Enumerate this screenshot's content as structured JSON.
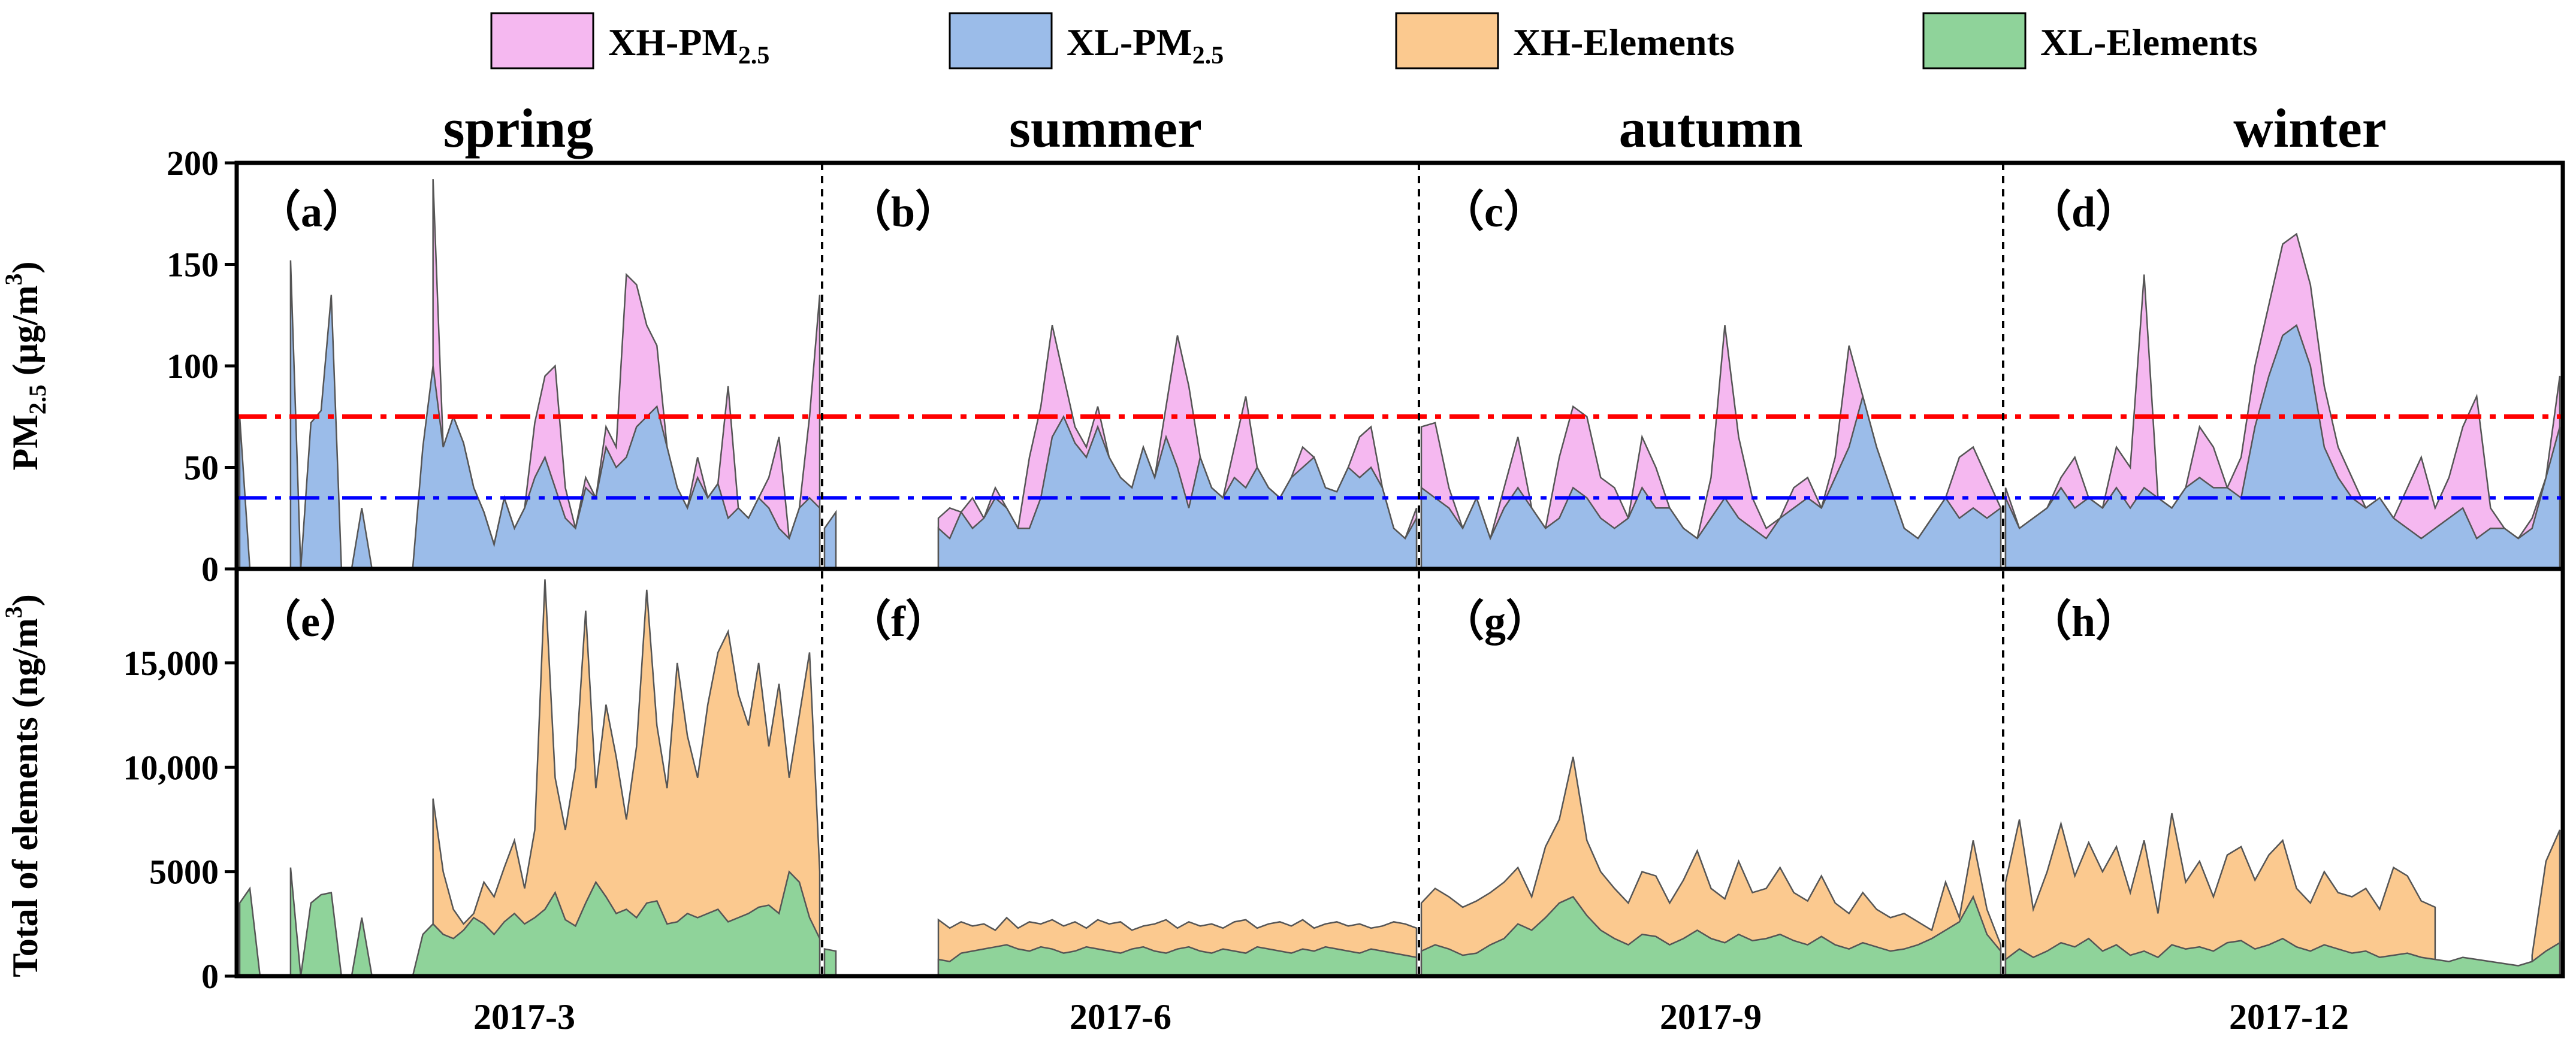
{
  "legend": {
    "items": [
      {
        "label": "XH-PM",
        "sub": "2.5",
        "color": "#f5b8f0"
      },
      {
        "label": "XL-PM",
        "sub": "2.5",
        "color": "#9bbce9"
      },
      {
        "label": "XH-Elements",
        "sub": "",
        "color": "#fbc98f"
      },
      {
        "label": "XL-Elements",
        "sub": "",
        "color": "#8fd39a"
      }
    ]
  },
  "seasons": [
    "spring",
    "summer",
    "autumn",
    "winter"
  ],
  "x_tick_labels": [
    "2017-3",
    "2017-6",
    "2017-9",
    "2017-12"
  ],
  "colors": {
    "xh_pm": "#f5b8f0",
    "xl_pm": "#9bbce9",
    "xh_el": "#fbc98f",
    "xl_el": "#8fd39a",
    "ref_high": "#ff0000",
    "ref_low": "#0000ff"
  },
  "chart_data": [
    {
      "type": "area",
      "panel": "top",
      "ylabel_main": "PM",
      "ylabel_sub": "2.5",
      "ylabel_unit": " (μg/m",
      "ylabel_sup": "3",
      "ylabel_close": ")",
      "ylim": [
        0,
        200
      ],
      "yticks": [
        0,
        50,
        100,
        150,
        200
      ],
      "ytick_labels": [
        "0",
        "50",
        "100",
        "150",
        "200"
      ],
      "reference_lines": [
        {
          "value": 75,
          "color": "#ff0000",
          "style": "dash-dot"
        },
        {
          "value": 35,
          "color": "#0000ff",
          "style": "dash-dot"
        }
      ],
      "panel_labels": [
        "（a）",
        "（b）",
        "（c）",
        "（d）"
      ],
      "series": [
        {
          "name": "XH-PM2.5",
          "values": [
            [
              null,
              null,
              null,
              null,
              null,
              null,
              null,
              null,
              null,
              null,
              null,
              null,
              null,
              null,
              null,
              null,
              null,
              null,
              null,
              192,
              60,
              75,
              62,
              40,
              28,
              12,
              35,
              20,
              30,
              72,
              95,
              100,
              40,
              20,
              45,
              35,
              70,
              60,
              145,
              140,
              120,
              110,
              60,
              40,
              30,
              55,
              35,
              42,
              90,
              30,
              25,
              35,
              45,
              65,
              15,
              30,
              75,
              135
            ],
            [
              null,
              null,
              null,
              null,
              null,
              null,
              null,
              null,
              null,
              null,
              25,
              30,
              28,
              35,
              25,
              40,
              30,
              20,
              55,
              80,
              120,
              95,
              70,
              60,
              80,
              55,
              45,
              40,
              60,
              45,
              80,
              115,
              90,
              55,
              40,
              35,
              60,
              85,
              50,
              40,
              35,
              45,
              60,
              55,
              40,
              38,
              50,
              65,
              70,
              40,
              20,
              15,
              30
            ],
            [
              70,
              72,
              40,
              20,
              35,
              15,
              40,
              65,
              30,
              20,
              55,
              80,
              75,
              45,
              40,
              25,
              65,
              50,
              30,
              20,
              15,
              45,
              120,
              65,
              35,
              20,
              25,
              40,
              45,
              30,
              55,
              110,
              85,
              60,
              40,
              20,
              15,
              25,
              35,
              55,
              60,
              45,
              30
            ],
            [
              40,
              20,
              25,
              30,
              45,
              55,
              35,
              30,
              60,
              50,
              145,
              35,
              30,
              40,
              70,
              60,
              40,
              55,
              100,
              130,
              160,
              165,
              140,
              90,
              60,
              45,
              30,
              35,
              25,
              40,
              55,
              30,
              45,
              70,
              85,
              30,
              20,
              15,
              25,
              45,
              95
            ]
          ]
        },
        {
          "name": "XL-PM2.5",
          "values": [
            [
              75,
              0,
              0,
              0,
              null,
              152,
              0,
              72,
              78,
              135,
              0,
              0,
              30,
              0,
              0,
              0,
              0,
              0,
              60,
              100,
              60,
              75,
              62,
              40,
              28,
              12,
              35,
              20,
              30,
              45,
              55,
              40,
              25,
              20,
              40,
              35,
              60,
              50,
              55,
              70,
              75,
              80,
              60,
              40,
              30,
              45,
              35,
              42,
              25,
              30,
              25,
              35,
              30,
              20,
              15,
              30,
              35,
              30
            ],
            [
              20,
              28,
              null,
              null,
              null,
              null,
              null,
              null,
              null,
              null,
              20,
              15,
              28,
              20,
              25,
              35,
              30,
              20,
              20,
              35,
              65,
              75,
              62,
              55,
              70,
              55,
              45,
              40,
              60,
              45,
              65,
              50,
              30,
              55,
              40,
              35,
              45,
              40,
              50,
              40,
              35,
              45,
              50,
              55,
              40,
              38,
              50,
              45,
              50,
              40,
              20,
              15,
              25
            ],
            [
              40,
              35,
              30,
              20,
              35,
              15,
              30,
              40,
              30,
              20,
              25,
              40,
              35,
              25,
              20,
              25,
              40,
              30,
              30,
              20,
              15,
              25,
              35,
              25,
              20,
              15,
              25,
              30,
              35,
              30,
              45,
              60,
              85,
              60,
              40,
              20,
              15,
              25,
              35,
              25,
              30,
              25,
              30
            ],
            [
              35,
              20,
              25,
              30,
              40,
              30,
              35,
              30,
              40,
              30,
              40,
              35,
              30,
              40,
              45,
              40,
              40,
              35,
              70,
              95,
              115,
              120,
              100,
              60,
              45,
              35,
              30,
              35,
              25,
              20,
              15,
              20,
              25,
              30,
              15,
              20,
              20,
              15,
              20,
              45,
              70
            ]
          ]
        }
      ]
    },
    {
      "type": "area",
      "panel": "bottom",
      "ylabel": "Total of elements (ng/m",
      "ylabel_sup": "3",
      "ylabel_close": ")",
      "ylim": [
        0,
        19500
      ],
      "yticks": [
        0,
        5000,
        10000,
        15000
      ],
      "ytick_labels": [
        "0",
        "5000",
        "10,000",
        "15,000"
      ],
      "panel_labels": [
        "（e）",
        "（f）",
        "（g）",
        "（h）"
      ],
      "series": [
        {
          "name": "XH-Elements",
          "values": [
            [
              null,
              null,
              null,
              null,
              null,
              null,
              null,
              null,
              null,
              null,
              null,
              null,
              null,
              null,
              null,
              null,
              null,
              null,
              null,
              8500,
              5000,
              3200,
              2500,
              3000,
              4500,
              3800,
              5200,
              6500,
              4200,
              7000,
              19000,
              9500,
              7000,
              10000,
              17500,
              9000,
              13000,
              10500,
              7500,
              11000,
              18500,
              12000,
              9000,
              15000,
              11500,
              9500,
              13000,
              15500,
              16500,
              13500,
              12000,
              15000,
              11000,
              14000,
              9500,
              12500,
              15500,
              5000
            ],
            [
              null,
              null,
              null,
              null,
              null,
              null,
              null,
              null,
              null,
              null,
              2700,
              2300,
              2600,
              2400,
              2500,
              2200,
              2800,
              2300,
              2600,
              2500,
              2700,
              2400,
              2600,
              2300,
              2700,
              2500,
              2600,
              2200,
              2400,
              2500,
              2700,
              2300,
              2600,
              2400,
              2500,
              2300,
              2600,
              2700,
              2300,
              2500,
              2600,
              2400,
              2700,
              2300,
              2500,
              2600,
              2400,
              2500,
              2300,
              2400,
              2600,
              2500,
              2300
            ],
            [
              3500,
              4200,
              3800,
              3300,
              3600,
              4000,
              4500,
              5200,
              3800,
              6200,
              7500,
              10500,
              6500,
              5000,
              4200,
              3500,
              5000,
              4800,
              3500,
              4600,
              6000,
              4200,
              3700,
              5500,
              4000,
              4200,
              5200,
              4000,
              3600,
              4800,
              3500,
              3000,
              4000,
              3200,
              2800,
              3000,
              2600,
              2200,
              4500,
              2800,
              6500,
              3200,
              1500
            ],
            [
              4500,
              7500,
              3200,
              5000,
              7300,
              4800,
              6400,
              5000,
              6200,
              4000,
              6500,
              3000,
              7800,
              4500,
              5500,
              3800,
              5800,
              6200,
              4600,
              5800,
              6500,
              4200,
              3500,
              5000,
              4000,
              3800,
              4200,
              3200,
              5200,
              4800,
              3600,
              3300,
              null,
              null,
              null,
              null,
              null,
              null,
              1000,
              5500,
              7000
            ]
          ]
        },
        {
          "name": "XL-Elements",
          "values": [
            [
              3500,
              4200,
              0,
              0,
              null,
              5200,
              0,
              3500,
              3900,
              4000,
              0,
              0,
              2800,
              0,
              0,
              0,
              0,
              0,
              2000,
              2500,
              2000,
              1800,
              2200,
              2800,
              2500,
              2000,
              2600,
              3000,
              2500,
              2800,
              3200,
              4000,
              2700,
              2400,
              3500,
              4500,
              3800,
              3000,
              3200,
              2800,
              3500,
              3600,
              2500,
              2600,
              3000,
              2800,
              3000,
              3200,
              2600,
              2800,
              3000,
              3300,
              3400,
              3000,
              5000,
              4500,
              2800,
              1800
            ],
            [
              1300,
              1200,
              null,
              null,
              null,
              null,
              null,
              null,
              null,
              null,
              800,
              700,
              1100,
              1200,
              1300,
              1400,
              1500,
              1300,
              1200,
              1400,
              1300,
              1100,
              1200,
              1400,
              1300,
              1200,
              1100,
              1300,
              1400,
              1200,
              1100,
              1300,
              1400,
              1200,
              1100,
              1300,
              1200,
              1100,
              1400,
              1300,
              1200,
              1100,
              1300,
              1200,
              1400,
              1300,
              1200,
              1100,
              1300,
              1200,
              1100,
              1000,
              900
            ],
            [
              1200,
              1500,
              1300,
              1000,
              1100,
              1500,
              1800,
              2500,
              2200,
              2800,
              3500,
              3800,
              2900,
              2200,
              1800,
              1500,
              2000,
              1900,
              1500,
              1800,
              2200,
              1800,
              1600,
              2000,
              1700,
              1800,
              2000,
              1700,
              1500,
              1900,
              1500,
              1300,
              1600,
              1400,
              1200,
              1300,
              1500,
              1800,
              2200,
              2600,
              3800,
              2000,
              1200
            ],
            [
              800,
              1300,
              900,
              1200,
              1600,
              1400,
              1800,
              1200,
              1500,
              1000,
              1200,
              900,
              1500,
              1300,
              1400,
              1200,
              1600,
              1700,
              1300,
              1500,
              1800,
              1400,
              1200,
              1500,
              1300,
              1100,
              1200,
              900,
              1000,
              1100,
              900,
              800,
              700,
              900,
              800,
              700,
              600,
              500,
              700,
              1200,
              1600
            ]
          ]
        }
      ]
    }
  ]
}
